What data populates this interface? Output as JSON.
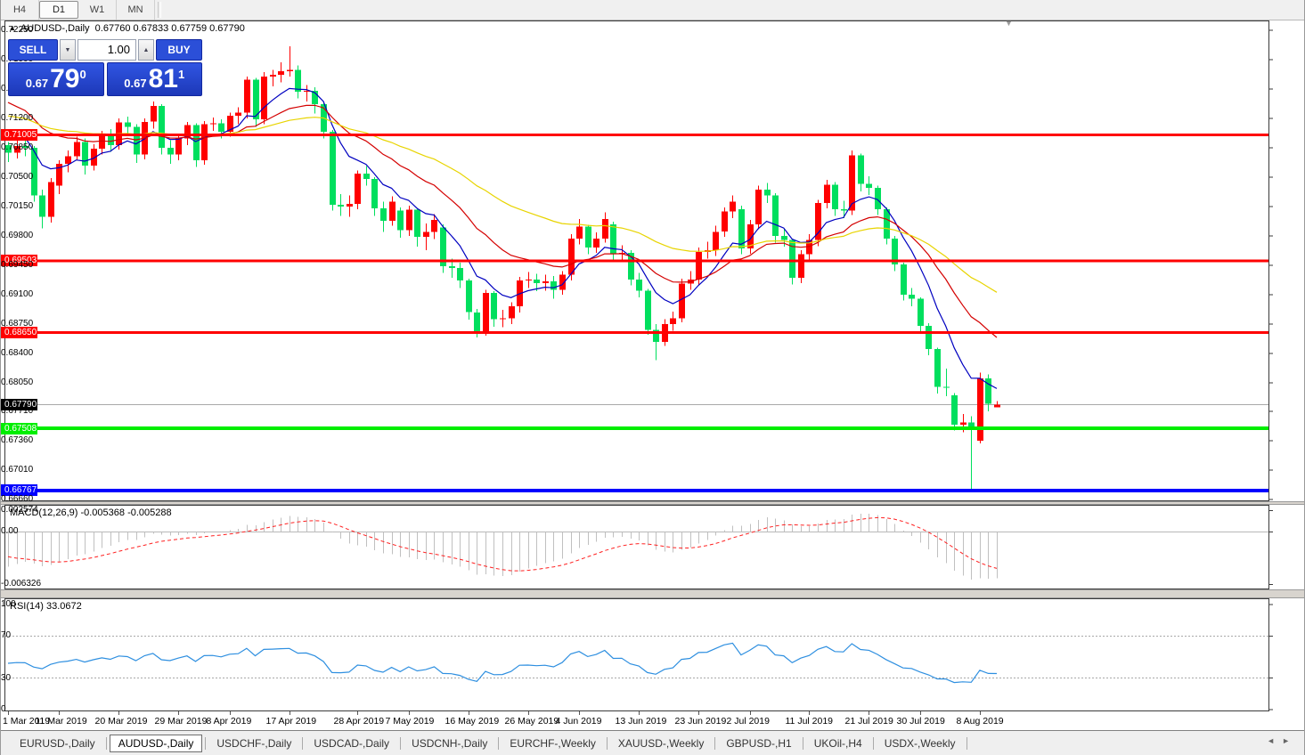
{
  "toolbar": {
    "timeframes": [
      {
        "label": "H4",
        "active": false
      },
      {
        "label": "D1",
        "active": true
      },
      {
        "label": "W1",
        "active": false
      },
      {
        "label": "MN",
        "active": false
      }
    ]
  },
  "icons": {
    "collapse_triangle": "▲",
    "spin_up": "▲",
    "spin_down": "▼",
    "shift_marker": "▼",
    "scroll_left": "◄",
    "scroll_right": "►"
  },
  "title": {
    "symbol": "AUDUSD-,Daily",
    "ohlc_text": "0.67760 0.67833 0.67759 0.67790"
  },
  "trade_panel": {
    "sell_label": "SELL",
    "buy_label": "BUY",
    "volume": "1.00",
    "sell_small": "0.67",
    "sell_big": "79",
    "sell_sup": "0",
    "buy_small": "0.67",
    "buy_big": "81",
    "buy_sup": "1"
  },
  "macd_pane": {
    "header": "MACD(12,26,9) -0.005368 -0.005288",
    "ticks": [
      "0.002574",
      "0.00",
      "-0.006326"
    ]
  },
  "rsi_pane": {
    "header": "RSI(14) 33.0672",
    "ticks": [
      "100",
      "70",
      "30",
      "0"
    ]
  },
  "tabs": {
    "items": [
      {
        "label": "EURUSD-,Daily",
        "active": false
      },
      {
        "label": "AUDUSD-,Daily",
        "active": true
      },
      {
        "label": "USDCHF-,Daily",
        "active": false
      },
      {
        "label": "USDCAD-,Daily",
        "active": false
      },
      {
        "label": "USDCNH-,Daily",
        "active": false
      },
      {
        "label": "EURCHF-,Weekly",
        "active": false
      },
      {
        "label": "XAUUSD-,Weekly",
        "active": false
      },
      {
        "label": "GBPUSD-,H1",
        "active": false
      },
      {
        "label": "UKOil-,H4",
        "active": false
      },
      {
        "label": "USDX-,Weekly",
        "active": false
      }
    ]
  },
  "chart_data": {
    "type": "candlestick",
    "symbol": "AUDUSD-,Daily",
    "colors": {
      "bull": "#ff0000",
      "bear": "#00df5e",
      "current_line": "#a8a8a8"
    },
    "y_ticks": [
      "0.72250",
      "0.71900",
      "0.71550",
      "0.71200",
      "0.70850",
      "0.70500",
      "0.70150",
      "0.69800",
      "0.69450",
      "0.69100",
      "0.68750",
      "0.68400",
      "0.68050",
      "0.67710",
      "0.67360",
      "0.67010",
      "0.66660"
    ],
    "current_price": {
      "text": "0.67790"
    },
    "hlines": [
      {
        "price": "0.71005",
        "color": "#ff0000",
        "thickness": 3,
        "left_marker": false
      },
      {
        "price": "0.69503",
        "color": "#ff0000",
        "thickness": 3,
        "left_marker": false
      },
      {
        "price": "0.68650",
        "color": "#ff0000",
        "thickness": 3,
        "left_marker": true
      },
      {
        "price": "0.67508",
        "color": "#00ee00",
        "thickness": 4,
        "left_marker": false
      },
      {
        "price": "0.66767",
        "color": "#0000ff",
        "thickness": 4,
        "left_marker": true
      }
    ],
    "axis_labels": [
      {
        "t": "1 Mar 2019",
        "i": 0
      },
      {
        "t": "11 Mar 2019",
        "i": 6
      },
      {
        "t": "20 Mar 2019",
        "i": 13
      },
      {
        "t": "29 Mar 2019",
        "i": 20
      },
      {
        "t": "8 Apr 2019",
        "i": 26
      },
      {
        "t": "17 Apr 2019",
        "i": 33
      },
      {
        "t": "28 Apr 2019",
        "i": 41
      },
      {
        "t": "7 May 2019",
        "i": 47
      },
      {
        "t": "16 May 2019",
        "i": 54
      },
      {
        "t": "26 May 2019",
        "i": 61
      },
      {
        "t": "4 Jun 2019",
        "i": 67
      },
      {
        "t": "13 Jun 2019",
        "i": 74
      },
      {
        "t": "23 Jun 2019",
        "i": 81
      },
      {
        "t": "2 Jul 2019",
        "i": 87
      },
      {
        "t": "11 Jul 2019",
        "i": 94
      },
      {
        "t": "21 Jul 2019",
        "i": 101
      },
      {
        "t": "30 Jul 2019",
        "i": 107
      },
      {
        "t": "8 Aug 2019",
        "i": 114
      }
    ],
    "overlays": [
      {
        "name": "ma-fast",
        "period": 8,
        "seed": 0.7105,
        "color": "#0000c0"
      },
      {
        "name": "ma-mid",
        "period": 20,
        "seed": 0.7139,
        "color": "#d40000"
      },
      {
        "name": "ma-slow",
        "period": 45,
        "seed": 0.7123,
        "color": "#e8d400"
      }
    ],
    "macd": {
      "fast": 12,
      "slow": 26,
      "signal": 9,
      "seed_fast_offset": 0.0008,
      "seed_slow_offset": 0.005,
      "seed_signal": -0.003,
      "hist_color": "#c0c0c0",
      "signal_color": "#ff2020",
      "zero_color": "#b8b8b8"
    },
    "rsi": {
      "period": 14,
      "seed_gain": 0.0022,
      "seed_loss": 0.0028,
      "color": "#2e8fe0",
      "levels": [
        70,
        30
      ],
      "level_color": "#a8a8a8"
    },
    "candles": [
      [
        0.7088,
        0.7092,
        0.7068,
        0.7079
      ],
      [
        0.7079,
        0.7094,
        0.7072,
        0.7087
      ],
      [
        0.7087,
        0.7098,
        0.7075,
        0.7085
      ],
      [
        0.7085,
        0.7087,
        0.7021,
        0.7028
      ],
      [
        0.7028,
        0.7035,
        0.6989,
        0.7003
      ],
      [
        0.7003,
        0.7049,
        0.6996,
        0.7044
      ],
      [
        0.704,
        0.707,
        0.703,
        0.7066
      ],
      [
        0.7066,
        0.7082,
        0.7056,
        0.7075
      ],
      [
        0.7075,
        0.7098,
        0.707,
        0.7092
      ],
      [
        0.7092,
        0.7096,
        0.7053,
        0.7064
      ],
      [
        0.7064,
        0.7089,
        0.7058,
        0.7084
      ],
      [
        0.7084,
        0.7105,
        0.7077,
        0.7101
      ],
      [
        0.7101,
        0.7107,
        0.708,
        0.7088
      ],
      [
        0.7088,
        0.712,
        0.7083,
        0.7115
      ],
      [
        0.7115,
        0.7122,
        0.71,
        0.711
      ],
      [
        0.711,
        0.7113,
        0.7067,
        0.7077
      ],
      [
        0.7077,
        0.712,
        0.7071,
        0.7116
      ],
      [
        0.7116,
        0.714,
        0.7108,
        0.7135
      ],
      [
        0.7135,
        0.7137,
        0.7077,
        0.7085
      ],
      [
        0.7085,
        0.7094,
        0.7066,
        0.7077
      ],
      [
        0.7077,
        0.7102,
        0.707,
        0.7096
      ],
      [
        0.7096,
        0.7116,
        0.7088,
        0.7112
      ],
      [
        0.7112,
        0.7114,
        0.7062,
        0.707
      ],
      [
        0.707,
        0.7117,
        0.7065,
        0.7113
      ],
      [
        0.7113,
        0.7121,
        0.7105,
        0.7114
      ],
      [
        0.7114,
        0.7119,
        0.7096,
        0.7104
      ],
      [
        0.7104,
        0.7127,
        0.7098,
        0.7123
      ],
      [
        0.7123,
        0.7133,
        0.7113,
        0.7127
      ],
      [
        0.7127,
        0.717,
        0.712,
        0.7166
      ],
      [
        0.7166,
        0.7168,
        0.711,
        0.7119
      ],
      [
        0.7119,
        0.7175,
        0.7113,
        0.717
      ],
      [
        0.717,
        0.7178,
        0.7158,
        0.7172
      ],
      [
        0.7172,
        0.7187,
        0.7163,
        0.7176
      ],
      [
        0.7176,
        0.7206,
        0.717,
        0.7178
      ],
      [
        0.7178,
        0.7183,
        0.7144,
        0.7152
      ],
      [
        0.7152,
        0.716,
        0.714,
        0.7153
      ],
      [
        0.7153,
        0.7157,
        0.7126,
        0.7137
      ],
      [
        0.7137,
        0.714,
        0.7096,
        0.7104
      ],
      [
        0.7104,
        0.7106,
        0.701,
        0.7017
      ],
      [
        0.7017,
        0.703,
        0.7004,
        0.7015
      ],
      [
        0.7015,
        0.7028,
        0.7003,
        0.7018
      ],
      [
        0.7018,
        0.7058,
        0.7012,
        0.7054
      ],
      [
        0.7054,
        0.7063,
        0.704,
        0.7048
      ],
      [
        0.7048,
        0.705,
        0.7004,
        0.7013
      ],
      [
        0.7013,
        0.7021,
        0.6985,
        0.6998
      ],
      [
        0.6998,
        0.7027,
        0.6992,
        0.7021
      ],
      [
        0.701,
        0.7014,
        0.6978,
        0.6987
      ],
      [
        0.6987,
        0.7016,
        0.698,
        0.7011
      ],
      [
        0.7011,
        0.7013,
        0.6967,
        0.6979
      ],
      [
        0.6979,
        0.6995,
        0.6963,
        0.6985
      ],
      [
        0.6985,
        0.7006,
        0.6976,
        0.6999
      ],
      [
        0.699,
        0.6994,
        0.6936,
        0.6944
      ],
      [
        0.6944,
        0.6953,
        0.693,
        0.6942
      ],
      [
        0.6942,
        0.6948,
        0.6918,
        0.6927
      ],
      [
        0.6927,
        0.6929,
        0.688,
        0.6889
      ],
      [
        0.6889,
        0.6893,
        0.6859,
        0.6866
      ],
      [
        0.6866,
        0.6916,
        0.6861,
        0.6912
      ],
      [
        0.6912,
        0.6914,
        0.6872,
        0.6881
      ],
      [
        0.6881,
        0.6892,
        0.6871,
        0.6882
      ],
      [
        0.6882,
        0.6901,
        0.6875,
        0.6896
      ],
      [
        0.6896,
        0.6931,
        0.6889,
        0.6927
      ],
      [
        0.6927,
        0.6937,
        0.6918,
        0.6928
      ],
      [
        0.6928,
        0.6935,
        0.6914,
        0.6924
      ],
      [
        0.6924,
        0.6934,
        0.6915,
        0.6926
      ],
      [
        0.6926,
        0.6932,
        0.6905,
        0.6916
      ],
      [
        0.6916,
        0.6938,
        0.691,
        0.6934
      ],
      [
        0.6934,
        0.6982,
        0.6927,
        0.6977
      ],
      [
        0.6977,
        0.7,
        0.697,
        0.6991
      ],
      [
        0.6991,
        0.6993,
        0.6958,
        0.6966
      ],
      [
        0.6966,
        0.6984,
        0.696,
        0.6977
      ],
      [
        0.6977,
        0.7008,
        0.6972,
        0.7
      ],
      [
        0.6994,
        0.6997,
        0.695,
        0.6959
      ],
      [
        0.6959,
        0.6969,
        0.6952,
        0.696
      ],
      [
        0.696,
        0.6963,
        0.6921,
        0.6928
      ],
      [
        0.6928,
        0.6936,
        0.6907,
        0.6915
      ],
      [
        0.6915,
        0.6917,
        0.6862,
        0.6868
      ],
      [
        0.6868,
        0.6875,
        0.6832,
        0.6854
      ],
      [
        0.6854,
        0.6881,
        0.6849,
        0.6875
      ],
      [
        0.6875,
        0.689,
        0.6867,
        0.6882
      ],
      [
        0.6882,
        0.6929,
        0.6877,
        0.6923
      ],
      [
        0.6923,
        0.6938,
        0.6916,
        0.6928
      ],
      [
        0.6928,
        0.6966,
        0.6921,
        0.6961
      ],
      [
        0.6961,
        0.6973,
        0.6953,
        0.6963
      ],
      [
        0.6963,
        0.6992,
        0.6956,
        0.6985
      ],
      [
        0.6985,
        0.7014,
        0.6979,
        0.7009
      ],
      [
        0.7009,
        0.7028,
        0.7001,
        0.7021
      ],
      [
        0.7012,
        0.7016,
        0.6958,
        0.6965
      ],
      [
        0.6965,
        0.6999,
        0.6959,
        0.6994
      ],
      [
        0.6994,
        0.704,
        0.6988,
        0.7035
      ],
      [
        0.7035,
        0.7043,
        0.7019,
        0.7028
      ],
      [
        0.7028,
        0.7031,
        0.6972,
        0.698
      ],
      [
        0.698,
        0.6988,
        0.6967,
        0.6975
      ],
      [
        0.6975,
        0.6977,
        0.6922,
        0.693
      ],
      [
        0.693,
        0.6963,
        0.6924,
        0.6958
      ],
      [
        0.6958,
        0.6982,
        0.6951,
        0.6975
      ],
      [
        0.6975,
        0.7023,
        0.6968,
        0.7019
      ],
      [
        0.7019,
        0.7047,
        0.7013,
        0.7041
      ],
      [
        0.7041,
        0.7044,
        0.7004,
        0.7012
      ],
      [
        0.7012,
        0.7022,
        0.7001,
        0.701
      ],
      [
        0.701,
        0.7082,
        0.7005,
        0.7076
      ],
      [
        0.7076,
        0.7078,
        0.7033,
        0.7042
      ],
      [
        0.7042,
        0.7051,
        0.7029,
        0.7037
      ],
      [
        0.7037,
        0.704,
        0.7005,
        0.7012
      ],
      [
        0.7012,
        0.7014,
        0.697,
        0.6977
      ],
      [
        0.6977,
        0.698,
        0.6938,
        0.6946
      ],
      [
        0.6946,
        0.6948,
        0.6903,
        0.691
      ],
      [
        0.691,
        0.6918,
        0.6896,
        0.6905
      ],
      [
        0.6905,
        0.6907,
        0.6866,
        0.6873
      ],
      [
        0.6873,
        0.6876,
        0.6838,
        0.6845
      ],
      [
        0.6845,
        0.6847,
        0.6792,
        0.68
      ],
      [
        0.68,
        0.6822,
        0.6789,
        0.6799
      ],
      [
        0.679,
        0.6793,
        0.6748,
        0.6755
      ],
      [
        0.6755,
        0.6768,
        0.6746,
        0.6758
      ],
      [
        0.6758,
        0.6765,
        0.6677,
        0.6753
      ],
      [
        0.6736,
        0.6817,
        0.6733,
        0.681
      ],
      [
        0.681,
        0.6815,
        0.6771,
        0.678
      ],
      [
        0.6776,
        0.67833,
        0.67759,
        0.6779
      ]
    ]
  }
}
